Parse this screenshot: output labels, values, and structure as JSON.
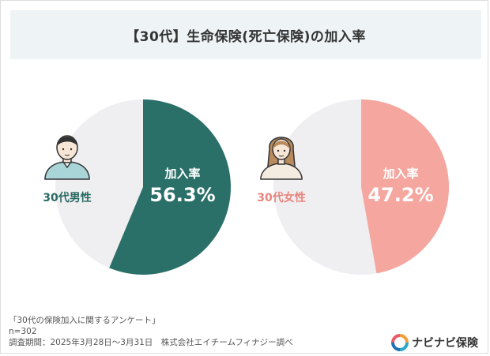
{
  "title": "【30代】生命保険(死亡保険)の加入率",
  "chart_data": [
    {
      "type": "pie",
      "group_label": "30代男性",
      "slice_label": "加入率",
      "value": 56.3,
      "value_text": "56.3%",
      "color": "#2a7068",
      "rest_color": "#efeef1",
      "label_color": "#2a6a62"
    },
    {
      "type": "pie",
      "group_label": "30代女性",
      "slice_label": "加入率",
      "value": 47.2,
      "value_text": "47.2%",
      "color": "#f5a69f",
      "rest_color": "#efeef1",
      "label_color": "#e8857c"
    }
  ],
  "footer": {
    "survey": "「30代の保険加入に関するアンケート」",
    "n": "n=302",
    "period": "調査期間：2025年3月28日～3月31日　株式会社エイチームフィナジー調べ"
  },
  "brand": {
    "name": "ナビナビ保険",
    "logo_icon": "navinavi-logo-icon"
  }
}
